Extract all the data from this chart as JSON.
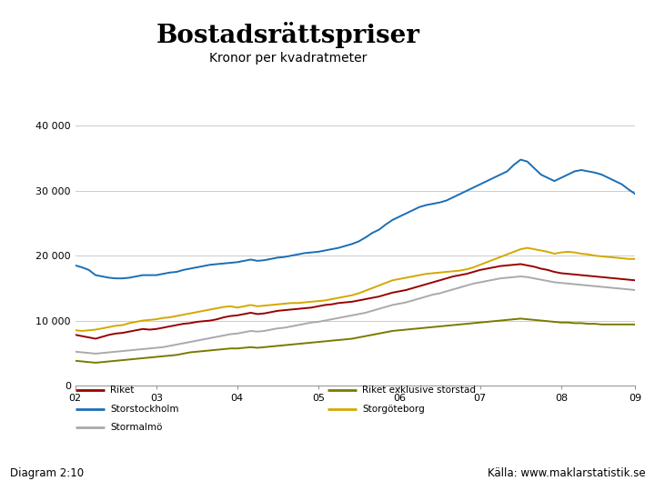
{
  "title": "Bostadsrättspriser",
  "subtitle": "Kronor per kvadratmeter",
  "footer_left": "Diagram 2:10",
  "footer_right": "Källa: www.maklarstatistik.se",
  "footer_bar_color": "#1a3a8c",
  "background_color": "#ffffff",
  "ylim": [
    0,
    42000
  ],
  "yticks": [
    0,
    10000,
    20000,
    30000,
    40000
  ],
  "ytick_labels": [
    "0",
    "10 000",
    "20 000",
    "30 000",
    "40 000"
  ],
  "xticks": [
    0,
    12,
    24,
    36,
    48,
    60,
    72,
    83
  ],
  "xtick_labels": [
    "02",
    "03",
    "04",
    "05",
    "06",
    "07",
    "08",
    "09"
  ],
  "series_order": [
    "Riket",
    "Storstockholm",
    "Stormalmö",
    "Riket exklusive storstad",
    "Storgöteborg"
  ],
  "series": {
    "Riket": {
      "color": "#990000",
      "linewidth": 1.4,
      "values": [
        7800,
        7600,
        7400,
        7200,
        7500,
        7800,
        8000,
        8100,
        8300,
        8500,
        8700,
        8600,
        8700,
        8900,
        9100,
        9300,
        9500,
        9600,
        9800,
        9900,
        10000,
        10200,
        10500,
        10700,
        10800,
        11000,
        11200,
        11000,
        11100,
        11300,
        11500,
        11600,
        11700,
        11800,
        11900,
        12000,
        12200,
        12400,
        12500,
        12700,
        12800,
        12900,
        13100,
        13300,
        13500,
        13700,
        14000,
        14300,
        14500,
        14700,
        15000,
        15300,
        15600,
        15900,
        16200,
        16500,
        16800,
        17000,
        17200,
        17500,
        17800,
        18000,
        18200,
        18400,
        18500,
        18600,
        18700,
        18500,
        18300,
        18000,
        17800,
        17500,
        17300,
        17200,
        17100,
        17000,
        16900,
        16800,
        16700,
        16600,
        16500,
        16400,
        16300,
        16200
      ]
    },
    "Storstockholm": {
      "color": "#1a6eb5",
      "linewidth": 1.4,
      "values": [
        18500,
        18200,
        17800,
        17000,
        16800,
        16600,
        16500,
        16500,
        16600,
        16800,
        17000,
        17000,
        17000,
        17200,
        17400,
        17500,
        17800,
        18000,
        18200,
        18400,
        18600,
        18700,
        18800,
        18900,
        19000,
        19200,
        19400,
        19200,
        19300,
        19500,
        19700,
        19800,
        20000,
        20200,
        20400,
        20500,
        20600,
        20800,
        21000,
        21200,
        21500,
        21800,
        22200,
        22800,
        23500,
        24000,
        24800,
        25500,
        26000,
        26500,
        27000,
        27500,
        27800,
        28000,
        28200,
        28500,
        29000,
        29500,
        30000,
        30500,
        31000,
        31500,
        32000,
        32500,
        33000,
        34000,
        34800,
        34500,
        33500,
        32500,
        32000,
        31500,
        32000,
        32500,
        33000,
        33200,
        33000,
        32800,
        32500,
        32000,
        31500,
        31000,
        30200,
        29500
      ]
    },
    "Stormalmö": {
      "color": "#aaaaaa",
      "linewidth": 1.4,
      "values": [
        5200,
        5100,
        5000,
        4900,
        5000,
        5100,
        5200,
        5300,
        5400,
        5500,
        5600,
        5700,
        5800,
        5900,
        6100,
        6300,
        6500,
        6700,
        6900,
        7100,
        7300,
        7500,
        7700,
        7900,
        8000,
        8200,
        8400,
        8300,
        8400,
        8600,
        8800,
        8900,
        9100,
        9300,
        9500,
        9700,
        9800,
        10000,
        10200,
        10400,
        10600,
        10800,
        11000,
        11200,
        11500,
        11800,
        12100,
        12400,
        12600,
        12800,
        13100,
        13400,
        13700,
        14000,
        14200,
        14500,
        14800,
        15100,
        15400,
        15700,
        15900,
        16100,
        16300,
        16500,
        16600,
        16700,
        16800,
        16700,
        16500,
        16300,
        16100,
        15900,
        15800,
        15700,
        15600,
        15500,
        15400,
        15300,
        15200,
        15100,
        15000,
        14900,
        14800,
        14700
      ]
    },
    "Riket exklusive storstad": {
      "color": "#7a7a00",
      "linewidth": 1.4,
      "values": [
        3800,
        3700,
        3600,
        3500,
        3600,
        3700,
        3800,
        3900,
        4000,
        4100,
        4200,
        4300,
        4400,
        4500,
        4600,
        4700,
        4900,
        5100,
        5200,
        5300,
        5400,
        5500,
        5600,
        5700,
        5700,
        5800,
        5900,
        5800,
        5900,
        6000,
        6100,
        6200,
        6300,
        6400,
        6500,
        6600,
        6700,
        6800,
        6900,
        7000,
        7100,
        7200,
        7400,
        7600,
        7800,
        8000,
        8200,
        8400,
        8500,
        8600,
        8700,
        8800,
        8900,
        9000,
        9100,
        9200,
        9300,
        9400,
        9500,
        9600,
        9700,
        9800,
        9900,
        10000,
        10100,
        10200,
        10300,
        10200,
        10100,
        10000,
        9900,
        9800,
        9700,
        9700,
        9600,
        9600,
        9500,
        9500,
        9400,
        9400,
        9400,
        9400,
        9400,
        9400
      ]
    },
    "Storgöteborg": {
      "color": "#d4a800",
      "linewidth": 1.4,
      "values": [
        8500,
        8400,
        8500,
        8600,
        8800,
        9000,
        9200,
        9300,
        9600,
        9800,
        10000,
        10100,
        10200,
        10400,
        10500,
        10700,
        10900,
        11100,
        11300,
        11500,
        11700,
        11900,
        12100,
        12200,
        12000,
        12200,
        12400,
        12200,
        12300,
        12400,
        12500,
        12600,
        12700,
        12700,
        12800,
        12900,
        13000,
        13100,
        13300,
        13500,
        13700,
        13900,
        14200,
        14600,
        15000,
        15400,
        15800,
        16200,
        16400,
        16600,
        16800,
        17000,
        17200,
        17300,
        17400,
        17500,
        17600,
        17700,
        17900,
        18200,
        18600,
        19000,
        19400,
        19800,
        20200,
        20600,
        21000,
        21200,
        21000,
        20800,
        20600,
        20300,
        20500,
        20600,
        20500,
        20300,
        20200,
        20000,
        19900,
        19800,
        19700,
        19600,
        19500,
        19500
      ]
    }
  },
  "legend_col1": [
    {
      "label": "Riket",
      "color": "#990000"
    },
    {
      "label": "Storstockholm",
      "color": "#1a6eb5"
    },
    {
      "label": "Stormalmö",
      "color": "#aaaaaa"
    }
  ],
  "legend_col2": [
    {
      "label": "Riket exklusive storstad",
      "color": "#7a7a00"
    },
    {
      "label": "Storgöteborg",
      "color": "#d4a800"
    }
  ]
}
